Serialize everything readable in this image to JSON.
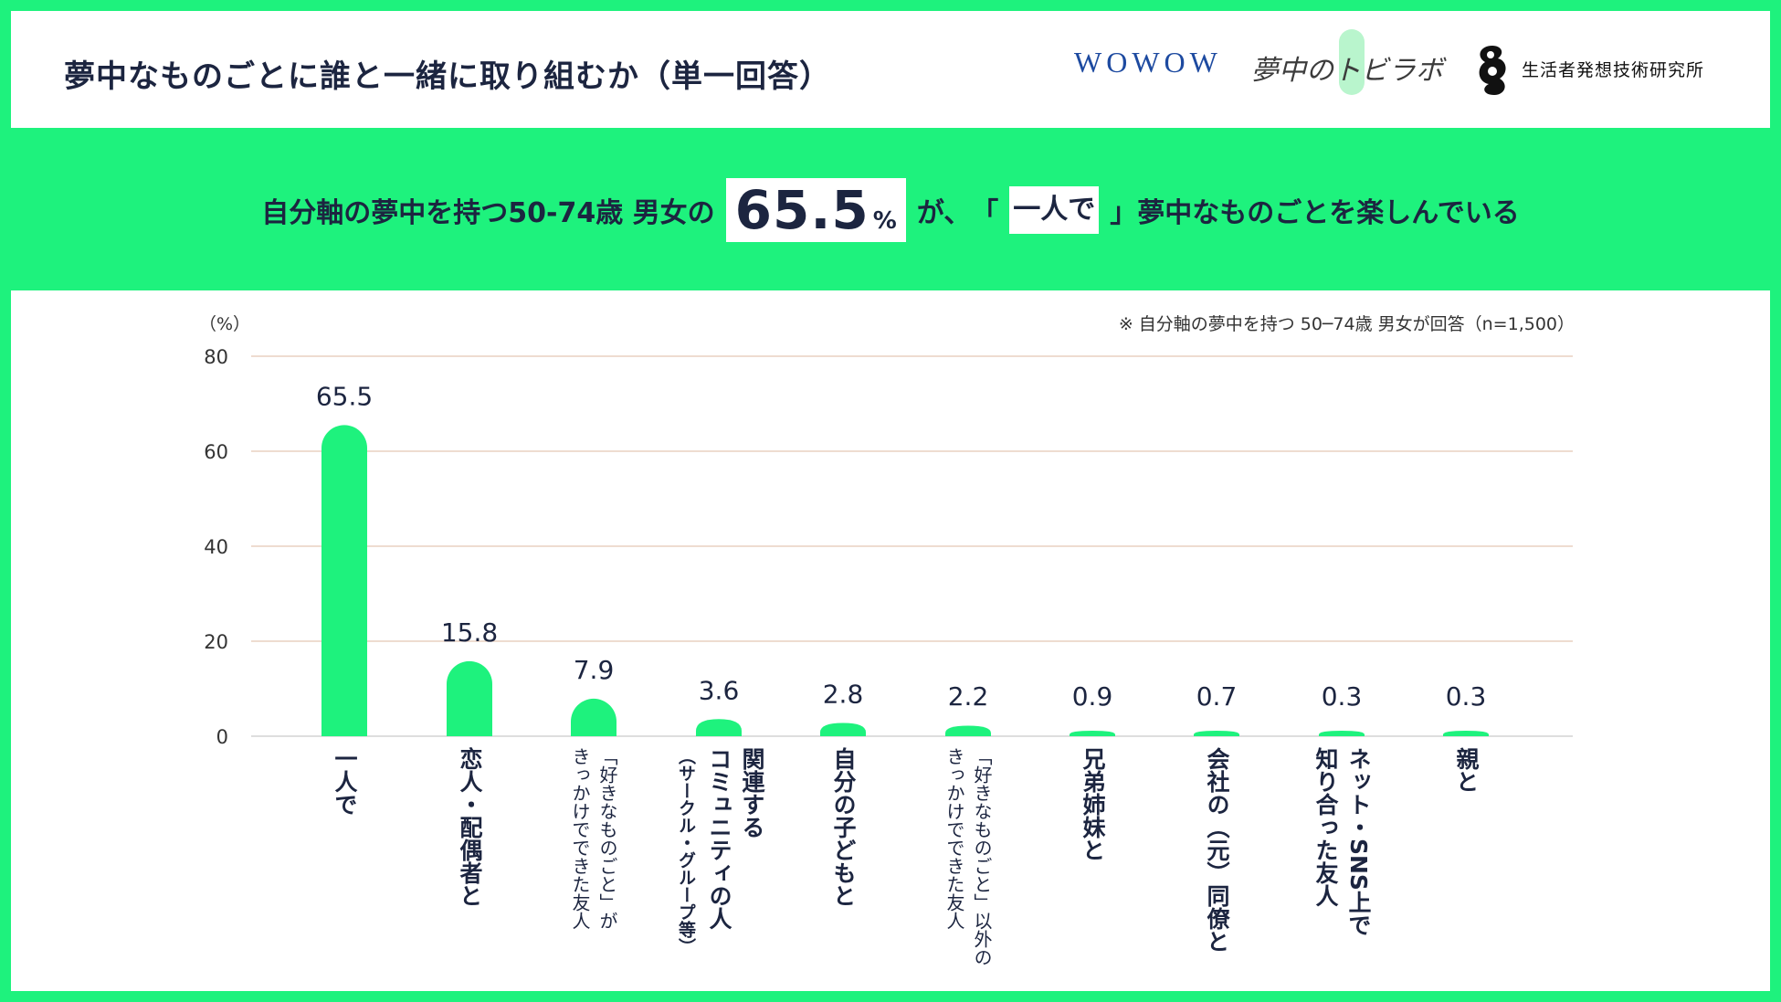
{
  "title": "夢中なものごとに誰と一緒に取り組むか（単一回答）",
  "logos": {
    "wowow": "WOWOW",
    "lab": "夢中のトビラボ",
    "institute": "生活者発想技術研究所"
  },
  "headline": {
    "pre": "自分軸の夢中を持つ50-74歳 男女の",
    "value": "65.5",
    "pct": "%",
    "mid": "が、",
    "bracket_open": "「",
    "hitori": "一人で",
    "bracket_close": "」",
    "post": "夢中なものごとを楽しんでいる"
  },
  "colors": {
    "accent": "#1ef27d",
    "text": "#1c2540",
    "bar": "#1ef27d",
    "grid": "#e3c7b4"
  },
  "chart_data": {
    "type": "bar",
    "unit_label": "（%）",
    "note": "※ 自分軸の夢中を持つ 50─74歳 男女が回答（n=1,500）",
    "ylim": [
      0,
      80
    ],
    "yticks": [
      "0",
      "20",
      "40",
      "60",
      "80"
    ],
    "grid": true,
    "categories": [
      "一人で",
      "恋人・配偶者と",
      "「好きなものごと」がきっかけでできた友人",
      "関連するコミュニティの人（サークル・グループ等）",
      "自分の子どもと",
      "「好きなものごと」以外のきっかけでできた友人",
      "兄弟姉妹と",
      "会社の（元）同僚と",
      "ネット・SNS上で知り合った友人",
      "親と"
    ],
    "values": [
      65.5,
      15.8,
      7.9,
      3.6,
      2.8,
      2.2,
      0.9,
      0.7,
      0.3,
      0.3
    ],
    "value_labels": [
      "65.5",
      "15.8",
      "7.9",
      "3.6",
      "2.8",
      "2.2",
      "0.9",
      "0.7",
      "0.3",
      "0.3"
    ],
    "category_lines": [
      [
        "一人で"
      ],
      [
        "恋人・配偶者と"
      ],
      [
        "「好きなものごと」が",
        "きっかけでできた友人"
      ],
      [
        "関連する",
        "コミュニティの人",
        "（サークル・グループ等）"
      ],
      [
        "自分の子どもと"
      ],
      [
        "「好きなものごと」以外の",
        "きっかけでできた友人"
      ],
      [
        "兄弟姉妹と"
      ],
      [
        "会社の（元）同僚と"
      ],
      [
        "ネット・SNS上で",
        "知り合った友人"
      ],
      [
        "親と"
      ]
    ]
  }
}
